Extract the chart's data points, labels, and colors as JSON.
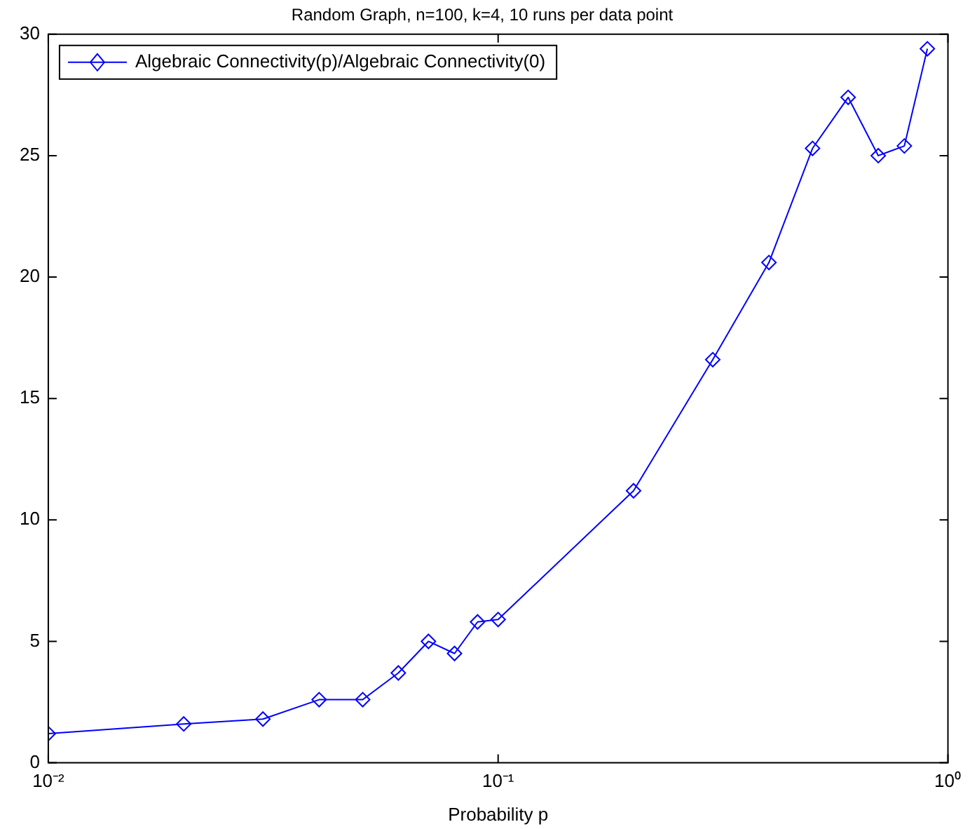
{
  "chart_data": {
    "type": "line",
    "title": "Random Graph, n=100, k=4, 10 runs per data point",
    "xlabel": "Probability p",
    "log": "x",
    "x": [
      0.01,
      0.02,
      0.03,
      0.04,
      0.05,
      0.06,
      0.07,
      0.08,
      0.09,
      0.1,
      0.2,
      0.3,
      0.4,
      0.5,
      0.6,
      0.7,
      0.8,
      0.9
    ],
    "series": [
      {
        "name": "Algebraic Connectivity(p)/Algebraic Connectivity(0)",
        "color": "#0000ff",
        "values": [
          1.2,
          1.6,
          1.8,
          2.6,
          2.6,
          3.7,
          5.0,
          4.5,
          5.8,
          5.9,
          11.2,
          16.6,
          20.6,
          25.3,
          27.4,
          25.0,
          25.4,
          29.4
        ]
      }
    ],
    "xlim": [
      0.01,
      1
    ],
    "xticks": [
      {
        "value": 0.01,
        "label": "10⁻²"
      },
      {
        "value": 0.1,
        "label": "10⁻¹"
      },
      {
        "value": 1,
        "label": "10⁰"
      }
    ],
    "ylim": [
      0,
      30
    ],
    "yticks": [
      0,
      5,
      10,
      15,
      20,
      25,
      30
    ],
    "grid": false,
    "legend": "top left",
    "marker": "diamond",
    "line_style": "solid"
  }
}
